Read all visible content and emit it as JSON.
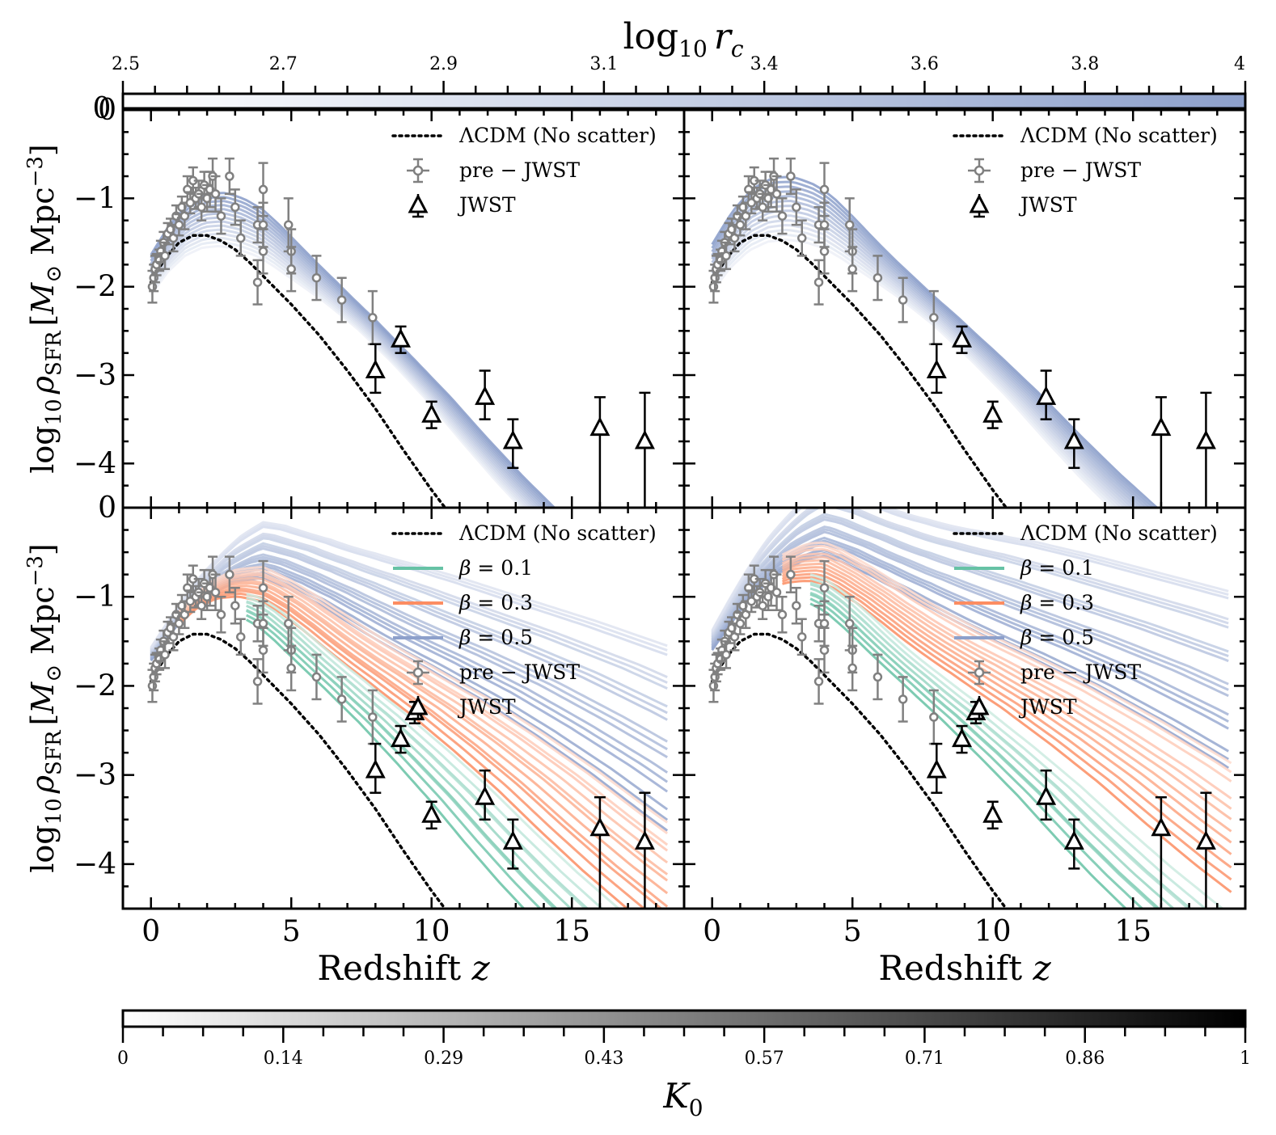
{
  "chart_data": [
    {
      "panel": "top-left",
      "type": "line",
      "xlim": [
        -1,
        19
      ],
      "ylim": [
        -4.5,
        0
      ],
      "ylabel": "log10 ρSFR [M⊙ Mpc^-3]",
      "xlabel": "",
      "yticks": [
        "0",
        "−1",
        "−2",
        "−3",
        "−4"
      ],
      "legend": {
        "position": "top-right",
        "entries": [
          "ΛCDM (No scatter)",
          "pre − JWST",
          "JWST"
        ]
      },
      "color_by": "log10 rc",
      "model_params": {
        "peak_shift": 0.4,
        "tail_shift": 0.55,
        "spread": 0.25,
        "z_start": 0.0
      },
      "beta_groups": []
    },
    {
      "panel": "top-right",
      "type": "line",
      "xlim": [
        -1,
        19
      ],
      "ylim": [
        -4.5,
        0
      ],
      "xlabel": "",
      "yticks": [],
      "legend": {
        "position": "top-right",
        "entries": [
          "ΛCDM (No scatter)",
          "pre − JWST",
          "JWST"
        ]
      },
      "color_by": "log10 rc",
      "model_params": {
        "peak_shift": 0.55,
        "tail_shift": 0.75,
        "spread": 0.25,
        "z_start": 0.0
      },
      "beta_groups": []
    },
    {
      "panel": "bottom-left",
      "type": "line",
      "xlim": [
        -1,
        19
      ],
      "ylim": [
        -4.5,
        0
      ],
      "ylabel": "log10 ρSFR [M⊙ Mpc^-3]",
      "xlabel": "Redshift z",
      "xticks": [
        "0",
        "5",
        "10",
        "15"
      ],
      "yticks": [
        "0",
        "−1",
        "−2",
        "−3",
        "−4"
      ],
      "legend": {
        "position": "top-right",
        "entries": [
          "ΛCDM (No scatter)",
          "β = 0.1",
          "β = 0.3",
          "β = 0.5",
          "pre − JWST",
          "JWST"
        ]
      },
      "beta_groups": [
        {
          "beta": 0.1,
          "color": "#66c2a5",
          "tail_shifts": [
            0.4,
            0.55,
            0.7
          ],
          "peak_shift": 0.35,
          "z_start": 3.4
        },
        {
          "beta": 0.3,
          "color": "#fc8d62",
          "tail_shifts": [
            0.9,
            1.1,
            1.3,
            1.5
          ],
          "peak_shift": 0.45,
          "z_start": 1.0
        },
        {
          "beta": 0.5,
          "color": "#8da0cb",
          "tail_shifts": [
            1.6,
            1.9,
            2.2,
            2.6,
            3.0,
            3.5
          ],
          "peak_shift": 0.5,
          "z_start": 0.0
        }
      ]
    },
    {
      "panel": "bottom-right",
      "type": "line",
      "xlim": [
        -1,
        19
      ],
      "ylim": [
        -4.5,
        0
      ],
      "xlabel": "Redshift z",
      "xticks": [
        "0",
        "5",
        "10",
        "15"
      ],
      "yticks": [],
      "legend": {
        "position": "top-right",
        "entries": [
          "ΛCDM (No scatter)",
          "β = 0.1",
          "β = 0.3",
          "β = 0.5",
          "pre − JWST",
          "JWST"
        ]
      },
      "beta_groups": [
        {
          "beta": 0.1,
          "color": "#66c2a5",
          "tail_shifts": [
            0.6,
            0.75,
            0.9
          ],
          "peak_shift": 0.55,
          "z_start": 3.5
        },
        {
          "beta": 0.3,
          "color": "#fc8d62",
          "tail_shifts": [
            1.2,
            1.45,
            1.7,
            2.0
          ],
          "peak_shift": 0.65,
          "z_start": 2.5
        },
        {
          "beta": 0.5,
          "color": "#8da0cb",
          "tail_shifts": [
            2.1,
            2.5,
            2.9,
            3.4,
            4.0,
            4.6
          ],
          "peak_shift": 0.75,
          "z_start": 0.0
        }
      ]
    }
  ],
  "lcdm": {
    "z": [
      0,
      0.5,
      1,
      1.5,
      2,
      2.5,
      3,
      3.5,
      4,
      5,
      6,
      7,
      8,
      9,
      10,
      10.6
    ],
    "y": [
      -1.95,
      -1.68,
      -1.5,
      -1.42,
      -1.42,
      -1.48,
      -1.58,
      -1.72,
      -1.88,
      -2.2,
      -2.55,
      -2.95,
      -3.38,
      -3.85,
      -4.3,
      -4.55
    ]
  },
  "pre_jwst": [
    {
      "z": 0.05,
      "y": -2.0,
      "err": 0.18
    },
    {
      "z": 0.1,
      "y": -1.9,
      "err": 0.15
    },
    {
      "z": 0.15,
      "y": -1.8,
      "err": 0.15
    },
    {
      "z": 0.2,
      "y": -1.75,
      "err": 0.12
    },
    {
      "z": 0.3,
      "y": -1.7,
      "err": 0.12
    },
    {
      "z": 0.35,
      "y": -1.6,
      "err": 0.12
    },
    {
      "z": 0.45,
      "y": -1.5,
      "err": 0.12
    },
    {
      "z": 0.5,
      "y": -1.65,
      "err": 0.15
    },
    {
      "z": 0.6,
      "y": -1.4,
      "err": 0.12
    },
    {
      "z": 0.7,
      "y": -1.35,
      "err": 0.12
    },
    {
      "z": 0.8,
      "y": -1.45,
      "err": 0.15
    },
    {
      "z": 0.9,
      "y": -1.2,
      "err": 0.12
    },
    {
      "z": 1.0,
      "y": -1.3,
      "err": 0.12
    },
    {
      "z": 1.1,
      "y": -1.1,
      "err": 0.12
    },
    {
      "z": 1.2,
      "y": -1.2,
      "err": 0.15
    },
    {
      "z": 1.3,
      "y": -0.9,
      "err": 0.15
    },
    {
      "z": 1.4,
      "y": -1.05,
      "err": 0.12
    },
    {
      "z": 1.5,
      "y": -0.8,
      "err": 0.15
    },
    {
      "z": 1.6,
      "y": -1.0,
      "err": 0.12
    },
    {
      "z": 1.7,
      "y": -0.95,
      "err": 0.15
    },
    {
      "z": 1.8,
      "y": -1.1,
      "err": 0.15
    },
    {
      "z": 1.9,
      "y": -0.85,
      "err": 0.15
    },
    {
      "z": 2.0,
      "y": -1.0,
      "err": 0.15
    },
    {
      "z": 2.1,
      "y": -0.9,
      "err": 0.2
    },
    {
      "z": 2.2,
      "y": -0.75,
      "err": 0.2
    },
    {
      "z": 2.3,
      "y": -0.95,
      "err": 0.2
    },
    {
      "z": 2.5,
      "y": -1.2,
      "err": 0.2
    },
    {
      "z": 2.8,
      "y": -0.75,
      "err": 0.2
    },
    {
      "z": 3.0,
      "y": -1.1,
      "err": 0.2
    },
    {
      "z": 3.2,
      "y": -1.45,
      "err": 0.2
    },
    {
      "z": 3.8,
      "y": -1.3,
      "err": 0.2
    },
    {
      "z": 3.8,
      "y": -1.95,
      "err": 0.25
    },
    {
      "z": 4.0,
      "y": -0.9,
      "err": 0.3
    },
    {
      "z": 4.0,
      "y": -1.3,
      "err": 0.25
    },
    {
      "z": 4.0,
      "y": -1.6,
      "err": 0.25
    },
    {
      "z": 4.9,
      "y": -1.3,
      "err": 0.3
    },
    {
      "z": 5.0,
      "y": -1.6,
      "err": 0.25
    },
    {
      "z": 5.0,
      "y": -1.8,
      "err": 0.25
    },
    {
      "z": 5.9,
      "y": -1.9,
      "err": 0.25
    },
    {
      "z": 6.8,
      "y": -2.15,
      "err": 0.25
    },
    {
      "z": 7.9,
      "y": -2.35,
      "err": 0.3
    }
  ],
  "jwst": [
    {
      "z": 8.0,
      "y": -2.95,
      "err_up": 0.3,
      "err_down": 0.25
    },
    {
      "z": 8.9,
      "y": -2.6,
      "err_up": 0.15,
      "err_down": 0.15
    },
    {
      "z": 10.0,
      "y": -3.45,
      "err_up": 0.15,
      "err_down": 0.15
    },
    {
      "z": 11.9,
      "y": -3.25,
      "err_up": 0.3,
      "err_down": 0.25
    },
    {
      "z": 12.9,
      "y": -3.75,
      "err_up": 0.25,
      "err_down": 0.3
    },
    {
      "z": 16.0,
      "y": -3.6,
      "err_up": 0.35,
      "err_down": 0.9
    },
    {
      "z": 17.6,
      "y": -3.75,
      "err_up": 0.55,
      "err_down": 0.8
    }
  ],
  "jwst_extra_bottom": {
    "z": 9.4,
    "y": -2.3,
    "err_up": 0.12,
    "err_down": 0.12
  },
  "top_colorbar": {
    "label": "log10 rc",
    "ticks": [
      "2.5",
      "2.7",
      "2.9",
      "3.1",
      "3.4",
      "3.6",
      "3.8",
      "4"
    ],
    "zero_label": "0",
    "color_from": "#ffffff",
    "color_to": "#8da0cb"
  },
  "bottom_colorbar": {
    "label": "K0",
    "ticks": [
      "0",
      "0.14",
      "0.29",
      "0.43",
      "0.57",
      "0.71",
      "0.86",
      "1"
    ],
    "color_from": "#ffffff",
    "color_to": "#000000"
  },
  "colors": {
    "blue": "#8da0cb",
    "green": "#66c2a5",
    "orange": "#fc8d62",
    "pre_jwst": "#808080",
    "jwst": "#000000",
    "lcdm": "#000000"
  }
}
